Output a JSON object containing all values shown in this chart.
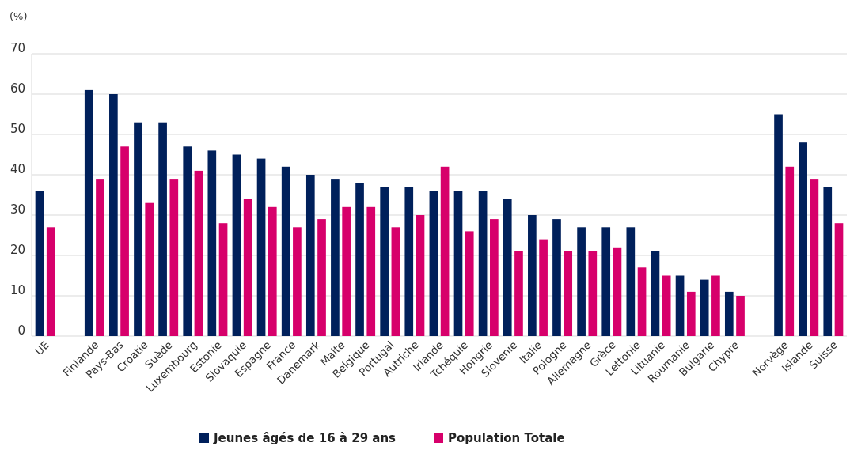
{
  "chart_data": {
    "type": "bar",
    "ylabel": "(%)",
    "categories": [
      "UE",
      null,
      "Finlande",
      "Pays-Bas",
      "Croatie",
      "Suède",
      "Luxembourg",
      "Estonie",
      "Slovaquie",
      "Espagne",
      "France",
      "Danemark",
      "Malte",
      "Belgique",
      "Portugal",
      "Autriche",
      "Irlande",
      "Tchéquie",
      "Hongrie",
      "Slovenie",
      "Italie",
      "Pologne",
      "Allemagne",
      "Grèce",
      "Lettonie",
      "Lituanie",
      "Roumanie",
      "Bulgarie",
      "Chypre",
      null,
      "Norvège",
      "Islande",
      "Suisse"
    ],
    "series": [
      {
        "name": "Jeunes âgés de 16 à 29 ans",
        "color": "#00205b",
        "values": [
          36,
          null,
          61,
          60,
          53,
          53,
          47,
          46,
          45,
          44,
          42,
          40,
          39,
          38,
          37,
          37,
          36,
          36,
          36,
          34,
          30,
          29,
          27,
          27,
          27,
          21,
          15,
          14,
          11,
          null,
          55,
          48,
          37
        ]
      },
      {
        "name": "Population Totale",
        "color": "#d7006b",
        "values": [
          27,
          null,
          39,
          47,
          33,
          39,
          41,
          28,
          34,
          32,
          27,
          29,
          32,
          32,
          27,
          30,
          42,
          26,
          29,
          21,
          24,
          21,
          21,
          22,
          17,
          15,
          11,
          15,
          10,
          null,
          42,
          39,
          28
        ]
      }
    ],
    "ylim": [
      0,
      70
    ],
    "yticks": [
      0,
      10,
      20,
      30,
      40,
      50,
      60,
      70
    ],
    "grid": "y",
    "legend": "bottom"
  }
}
